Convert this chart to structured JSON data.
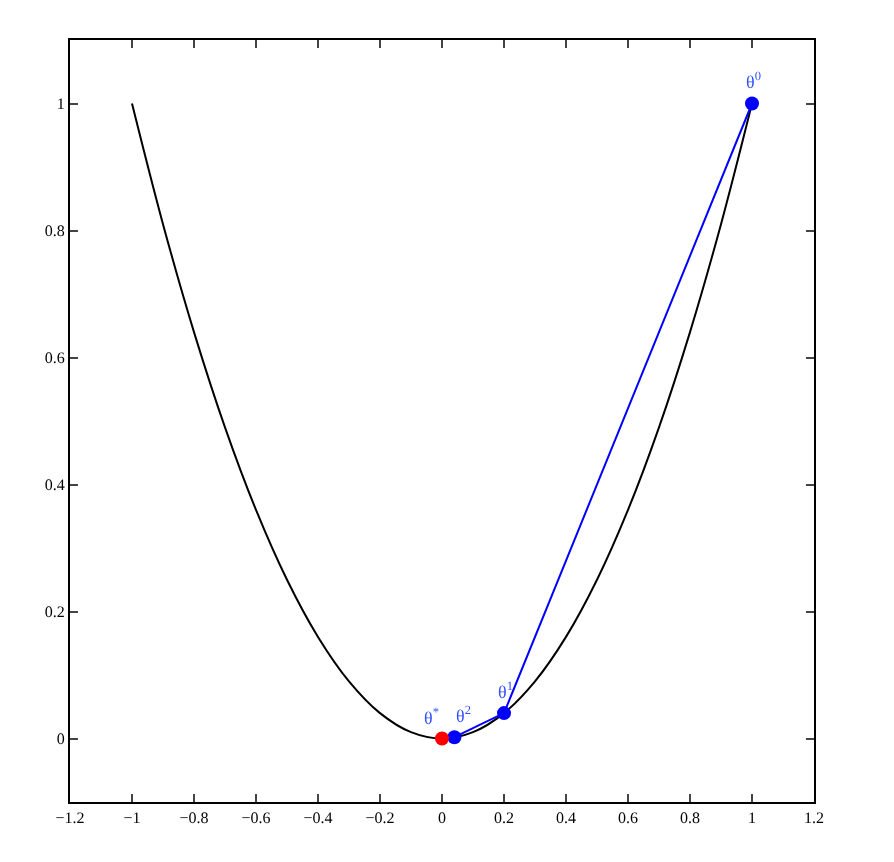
{
  "chart_data": {
    "type": "line",
    "xlim": [
      -1.2,
      1.2
    ],
    "ylim": [
      -0.1,
      1.1
    ],
    "xticks": [
      {
        "value": -1.2,
        "label": "−1.2"
      },
      {
        "value": -1,
        "label": "−1"
      },
      {
        "value": -0.8,
        "label": "−0.8"
      },
      {
        "value": -0.6,
        "label": "−0.6"
      },
      {
        "value": -0.4,
        "label": "−0.4"
      },
      {
        "value": -0.2,
        "label": "−0.2"
      },
      0,
      0.2,
      0.4,
      0.6,
      0.8,
      1,
      1.2
    ],
    "yticks": [
      0,
      0.2,
      0.4,
      0.6,
      0.8,
      1
    ],
    "series": [
      {
        "color": "#000000",
        "marker": "none",
        "x": [
          -1,
          -0.9,
          -0.8,
          -0.7,
          -0.6,
          -0.5,
          -0.4,
          -0.3,
          -0.2,
          -0.1,
          0,
          0.1,
          0.2,
          0.3,
          0.4,
          0.5,
          0.6,
          0.7,
          0.8,
          0.9,
          1
        ],
        "values": [
          1,
          0.81,
          0.64,
          0.49,
          0.36,
          0.25,
          0.16,
          0.09,
          0.04,
          0.01,
          0,
          0.01,
          0.04,
          0.09,
          0.16,
          0.25,
          0.36,
          0.49,
          0.64,
          0.81,
          1
        ]
      },
      {
        "type": "line",
        "color": "#0000ff",
        "marker": "circle",
        "x": [
          1,
          0.2,
          0.04
        ],
        "values": [
          1,
          0.04,
          0.002
        ]
      },
      {
        "type": "scatter",
        "color": "#ff0000",
        "marker": "circle",
        "x": [
          0
        ],
        "values": [
          0
        ]
      }
    ],
    "annotations": [
      {
        "text": "θ$^{0}$",
        "x": 1,
        "y": 1
      },
      {
        "text": "θ$^{1}$",
        "x": 0.2,
        "y": 0.04
      },
      {
        "text": "θ$^{2}$",
        "x": 0.04,
        "y": 0.002
      },
      {
        "text": "θ$^{*}$",
        "x": 0,
        "y": 0
      }
    ]
  }
}
